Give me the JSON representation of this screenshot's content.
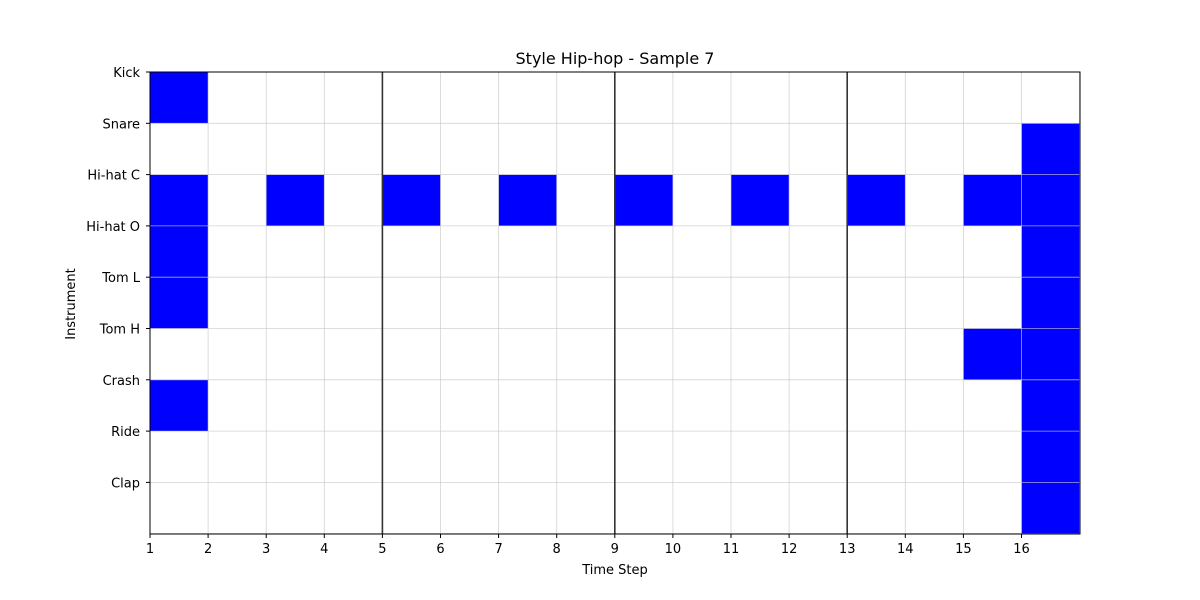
{
  "chart_data": {
    "type": "heatmap",
    "title": "Style Hip-hop - Sample 7",
    "xlabel": "Time Step",
    "ylabel": "Instrument",
    "instruments": [
      "Kick",
      "Snare",
      "Hi-hat C",
      "Hi-hat O",
      "Tom L",
      "Tom H",
      "Crash",
      "Ride",
      "Clap"
    ],
    "steps": [
      "1",
      "2",
      "3",
      "4",
      "5",
      "6",
      "7",
      "8",
      "9",
      "10",
      "11",
      "12",
      "13",
      "14",
      "15",
      "16"
    ],
    "active_cells": [
      {
        "instrument": "Kick",
        "steps": [
          1
        ]
      },
      {
        "instrument": "Snare",
        "steps": [
          16
        ]
      },
      {
        "instrument": "Hi-hat C",
        "steps": [
          1,
          3,
          5,
          7,
          9,
          11,
          13,
          15,
          16
        ]
      },
      {
        "instrument": "Hi-hat O",
        "steps": [
          1,
          16
        ]
      },
      {
        "instrument": "Tom L",
        "steps": [
          1,
          16
        ]
      },
      {
        "instrument": "Tom H",
        "steps": [
          15,
          16
        ]
      },
      {
        "instrument": "Crash",
        "steps": [
          1,
          16
        ]
      },
      {
        "instrument": "Ride",
        "steps": [
          16
        ]
      },
      {
        "instrument": "Clap",
        "steps": [
          16
        ]
      }
    ],
    "bar_lines_at_steps": [
      5,
      9,
      13
    ],
    "grid": true,
    "colors": {
      "active": "#0000ff",
      "inactive": "#ffffff",
      "grid": "#c8c8c8",
      "bar_line": "#333333"
    }
  }
}
